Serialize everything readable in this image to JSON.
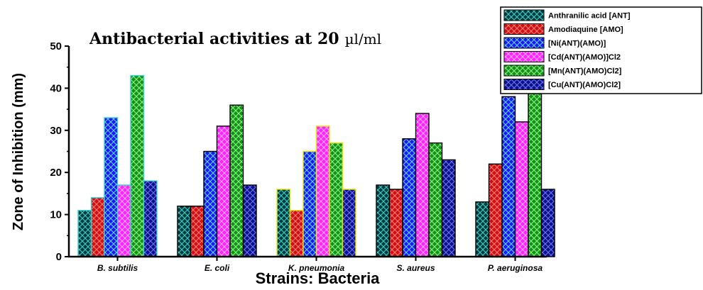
{
  "chart_data": {
    "type": "bar",
    "title": "Antibacterial activities at 20",
    "title_unit": "µl/ml",
    "xlabel": "Strains: Bacteria",
    "ylabel": "Zone of Inhibition (mm)",
    "ylim": [
      0,
      50
    ],
    "yticks": [
      "0",
      "10",
      "20",
      "30",
      "40",
      "50"
    ],
    "legend_position": "top-right",
    "grid": false,
    "categories": [
      "B. subtilis",
      "E. coli",
      "K. pneumonia",
      "S. aureus",
      "P. aeruginosa"
    ],
    "series": [
      {
        "name": "Anthranilic acid [ANT]",
        "fill": "#0d3a3a",
        "hatch": "#39d0d0",
        "values": [
          11,
          12,
          16,
          17,
          13
        ]
      },
      {
        "name": "Amodiaquine [AMO]",
        "fill": "#cc1111",
        "hatch": "#ff7777",
        "values": [
          14,
          12,
          11,
          16,
          22
        ]
      },
      {
        "name": "[Ni(ANT)(AMO)]",
        "fill": "#1a1aee",
        "hatch": "#66ccff",
        "values": [
          33,
          25,
          25,
          28,
          38
        ]
      },
      {
        "name": "[Cd(ANT)(AMO)]Cl2",
        "fill": "#ff22ff",
        "hatch": "#ffaaff",
        "values": [
          17,
          31,
          31,
          34,
          32
        ]
      },
      {
        "name": "[Mn(ANT)(AMO)Cl2]",
        "fill": "#1e8a1e",
        "hatch": "#77ff77",
        "values": [
          43,
          36,
          27,
          27,
          47
        ]
      },
      {
        "name": "[Cu(ANT)(AMO)Cl2]",
        "fill": "#101080",
        "hatch": "#6677ff",
        "values": [
          18,
          17,
          16,
          23,
          16
        ]
      }
    ],
    "group_borders": [
      "#39d0d0",
      "#000000",
      "#e6e600",
      "#000000",
      "#000000"
    ]
  }
}
